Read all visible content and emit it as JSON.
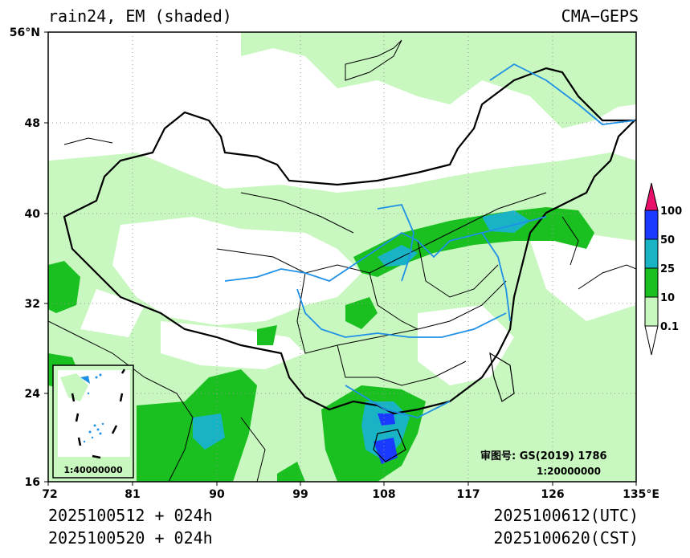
{
  "header": {
    "title": "rain24, EM (shaded)",
    "model": "CMA−GEPS"
  },
  "axes": {
    "lat_ticks": [
      "56°N",
      "48",
      "40",
      "32",
      "24",
      "16"
    ],
    "lon_ticks": [
      "72",
      "81",
      "90",
      "99",
      "108",
      "117",
      "126",
      "135°E"
    ]
  },
  "colorbar": {
    "levels": [
      "100",
      "50",
      "25",
      "10",
      "0.1"
    ],
    "colors": [
      "#e8106a",
      "#1a3bff",
      "#19b3c6",
      "#19c01f",
      "#c8f7c0",
      "#ffffff"
    ]
  },
  "inset": {
    "scale": "1:40000000"
  },
  "map_note": {
    "approval": "审图号: GS(2019) 1786",
    "scale": "1:20000000"
  },
  "footer": {
    "init_utc": "2025100512 + 024h",
    "init_cst": "2025100520 + 024h",
    "valid_utc": "2025100612(UTC)",
    "valid_cst": "2025100620(CST)"
  }
}
